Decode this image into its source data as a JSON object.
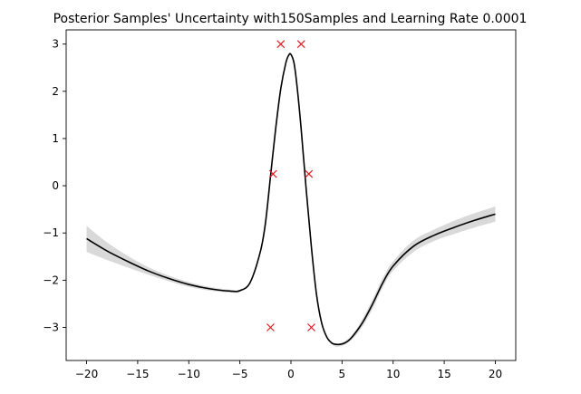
{
  "chart_data": {
    "type": "line",
    "title": "Posterior Samples' Uncertainty with150Samples and Learning Rate 0.0001",
    "xlabel": "",
    "ylabel": "",
    "xlim": [
      -22,
      22
    ],
    "ylim": [
      -3.7,
      3.3
    ],
    "xticks": [
      -20,
      -15,
      -10,
      -5,
      0,
      5,
      10,
      15,
      20
    ],
    "yticks": [
      -3,
      -2,
      -1,
      0,
      1,
      2,
      3
    ],
    "grid": false,
    "colors": {
      "mean_line": "#000000",
      "band": "#d9d9d9",
      "points": "#e31a1c"
    },
    "series": [
      {
        "kind": "mean",
        "x": [
          -20,
          -18,
          -16,
          -14,
          -12,
          -10,
          -8,
          -6,
          -5,
          -4,
          -3,
          -2.5,
          -2,
          -1.5,
          -1,
          -0.5,
          -0.2,
          0,
          0.3,
          0.6,
          1,
          1.5,
          2,
          2.5,
          3,
          3.5,
          4,
          4.5,
          5,
          5.5,
          6,
          7,
          8,
          9,
          10,
          12,
          14,
          16,
          18,
          20
        ],
        "y": [
          -1.12,
          -1.38,
          -1.6,
          -1.8,
          -1.96,
          -2.09,
          -2.18,
          -2.23,
          -2.22,
          -2.05,
          -1.4,
          -0.8,
          0.2,
          1.2,
          2.05,
          2.6,
          2.77,
          2.78,
          2.6,
          2.1,
          1.2,
          -0.1,
          -1.3,
          -2.3,
          -2.9,
          -3.2,
          -3.33,
          -3.36,
          -3.35,
          -3.3,
          -3.2,
          -2.9,
          -2.5,
          -2.05,
          -1.7,
          -1.28,
          -1.05,
          -0.88,
          -0.73,
          -0.6
        ]
      },
      {
        "kind": "band",
        "x": [
          -20,
          -18,
          -16,
          -14,
          -12,
          -10,
          -8,
          -6,
          -5,
          -4,
          -3,
          -2,
          0,
          2,
          3,
          4,
          5,
          6,
          7,
          8,
          9,
          10,
          12,
          14,
          16,
          18,
          20
        ],
        "upper": [
          -0.85,
          -1.2,
          -1.48,
          -1.72,
          -1.9,
          -2.04,
          -2.14,
          -2.2,
          -2.2,
          -2.03,
          -1.38,
          0.22,
          2.8,
          -1.28,
          -2.88,
          -3.3,
          -3.32,
          -3.15,
          -2.82,
          -2.4,
          -1.95,
          -1.6,
          -1.16,
          -0.93,
          -0.74,
          -0.58,
          -0.44
        ],
        "lower": [
          -1.4,
          -1.57,
          -1.73,
          -1.88,
          -2.02,
          -2.14,
          -2.22,
          -2.26,
          -2.25,
          -2.07,
          -1.42,
          0.18,
          2.76,
          -1.32,
          -2.92,
          -3.36,
          -3.39,
          -3.25,
          -2.98,
          -2.6,
          -2.15,
          -1.8,
          -1.4,
          -1.17,
          -1.02,
          -0.88,
          -0.76
        ]
      }
    ],
    "points": {
      "marker": "x",
      "x": [
        -1,
        1,
        -1.75,
        1.75,
        -2,
        2
      ],
      "y": [
        3,
        3,
        0.25,
        0.25,
        -3,
        -3
      ]
    }
  }
}
